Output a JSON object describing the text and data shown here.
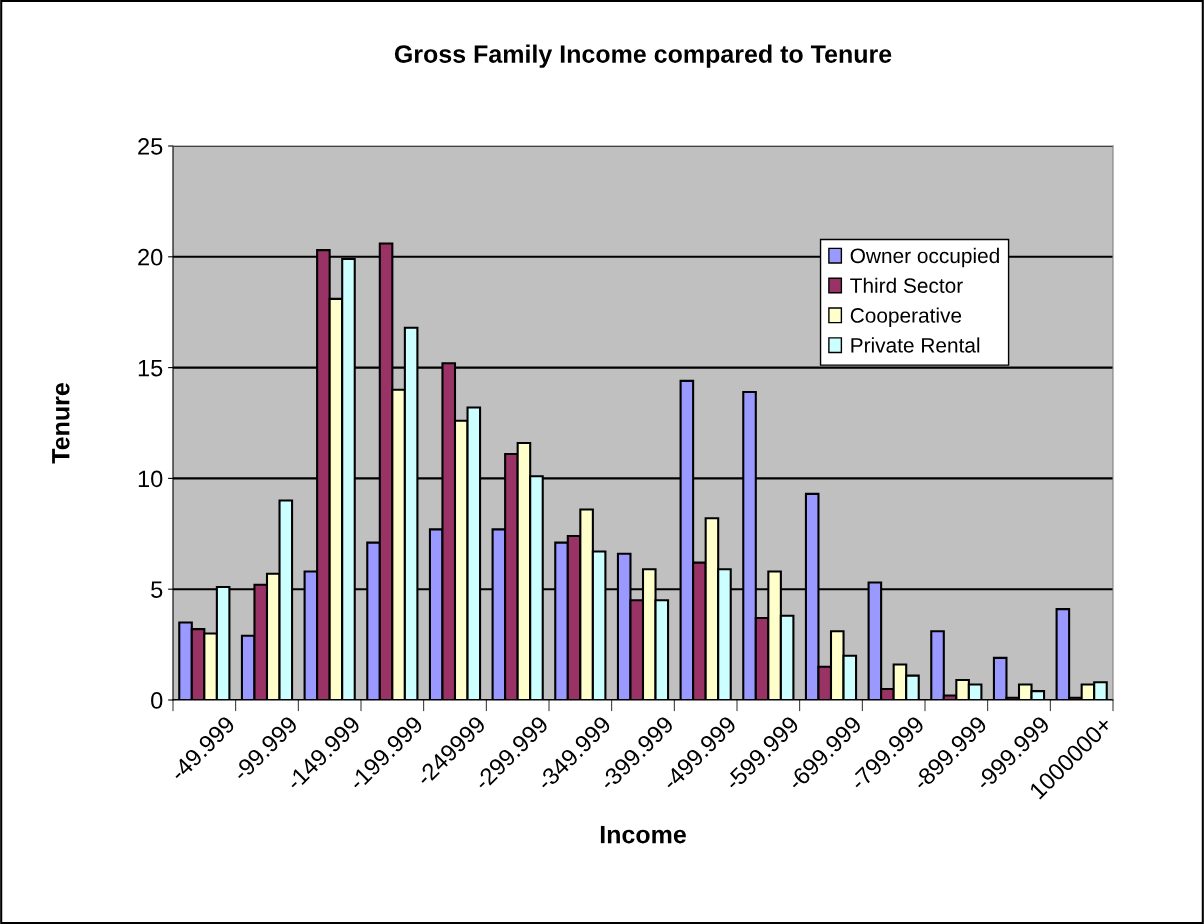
{
  "chart_data": {
    "type": "bar",
    "title": "Gross Family Income compared to Tenure",
    "xlabel": "Income",
    "ylabel": "Tenure",
    "categories": [
      "-49.999",
      "-99.999",
      "-149.999",
      "-199.999",
      "-249999",
      "-299.999",
      "-349.999",
      "-399.999",
      "-499.999",
      "-599.999",
      "-699.999",
      "-799.999",
      "-899.999",
      "-999.999",
      "1000000+"
    ],
    "series": [
      {
        "name": "Owner occupied",
        "color": "#9999ff",
        "values": [
          3.5,
          2.9,
          5.8,
          7.1,
          7.7,
          7.7,
          7.1,
          6.6,
          14.4,
          13.9,
          9.3,
          5.3,
          3.1,
          1.9,
          4.1
        ]
      },
      {
        "name": "Third Sector",
        "color": "#993366",
        "values": [
          3.2,
          5.2,
          20.3,
          20.6,
          15.2,
          11.1,
          7.4,
          4.5,
          6.2,
          3.7,
          1.5,
          0.5,
          0.2,
          0.1,
          0.1
        ]
      },
      {
        "name": "Cooperative",
        "color": "#ffffcc",
        "values": [
          3.0,
          5.7,
          18.1,
          14.0,
          12.6,
          11.6,
          8.6,
          5.9,
          8.2,
          5.8,
          3.1,
          1.6,
          0.9,
          0.7,
          0.7
        ]
      },
      {
        "name": "Private Rental",
        "color": "#ccffff",
        "values": [
          5.1,
          9.0,
          19.9,
          16.8,
          13.2,
          10.1,
          6.7,
          4.5,
          5.9,
          3.8,
          2.0,
          1.1,
          0.7,
          0.4,
          0.8
        ]
      }
    ],
    "ylim": [
      0,
      25
    ],
    "yticks": [
      0,
      5,
      10,
      15,
      20,
      25
    ],
    "grid": "y",
    "legend": "top right"
  }
}
